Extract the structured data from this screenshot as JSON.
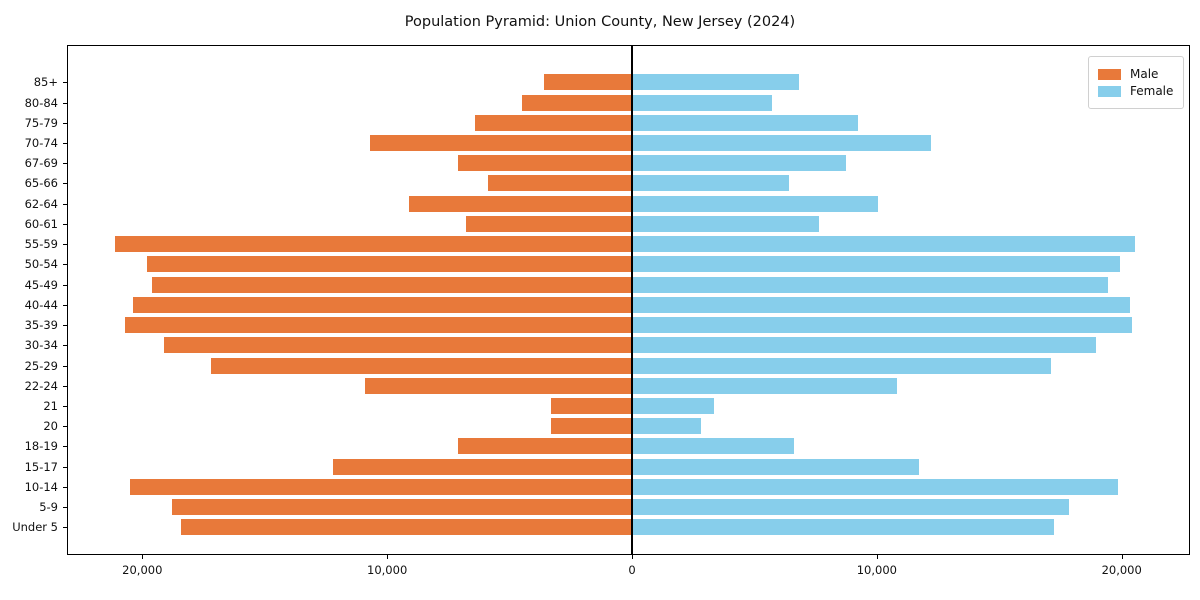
{
  "title": "Population Pyramid: Union County, New Jersey (2024)",
  "legend": {
    "male_label": "Male",
    "female_label": "Female"
  },
  "colors": {
    "male": "#E8793A",
    "female": "#87CEEB",
    "axis": "#000000"
  },
  "x_axis": {
    "ticks": [
      {
        "value": -20000,
        "label": "20,000"
      },
      {
        "value": -10000,
        "label": "10,000"
      },
      {
        "value": 0,
        "label": "0"
      },
      {
        "value": 10000,
        "label": "10,000"
      },
      {
        "value": 20000,
        "label": "20,000"
      }
    ]
  },
  "chart_data": {
    "type": "bar",
    "orientation": "horizontal-pyramid",
    "title": "Population Pyramid: Union County, New Jersey (2024)",
    "categories_top_to_bottom": [
      "85+",
      "80-84",
      "75-79",
      "70-74",
      "67-69",
      "65-66",
      "62-64",
      "60-61",
      "55-59",
      "50-54",
      "45-49",
      "40-44",
      "35-39",
      "30-34",
      "25-29",
      "22-24",
      "21",
      "20",
      "18-19",
      "15-17",
      "10-14",
      "5-9",
      "Under 5"
    ],
    "series": [
      {
        "name": "Male",
        "direction": "left",
        "values": [
          3600,
          4500,
          6400,
          10700,
          7100,
          5900,
          9100,
          6800,
          21100,
          19800,
          19600,
          20400,
          20700,
          19100,
          17200,
          10900,
          3300,
          3300,
          7100,
          12200,
          20500,
          18800,
          18400
        ]
      },
      {
        "name": "Female",
        "direction": "right",
        "values": [
          6800,
          5700,
          9200,
          12200,
          8700,
          6400,
          10000,
          7600,
          20500,
          19900,
          19400,
          20300,
          20400,
          18900,
          17100,
          10800,
          3300,
          2800,
          6600,
          11700,
          19800,
          17800,
          17200
        ]
      }
    ],
    "xlim": [
      -23000,
      22800
    ],
    "grid": false,
    "legend_position": "upper-right"
  }
}
